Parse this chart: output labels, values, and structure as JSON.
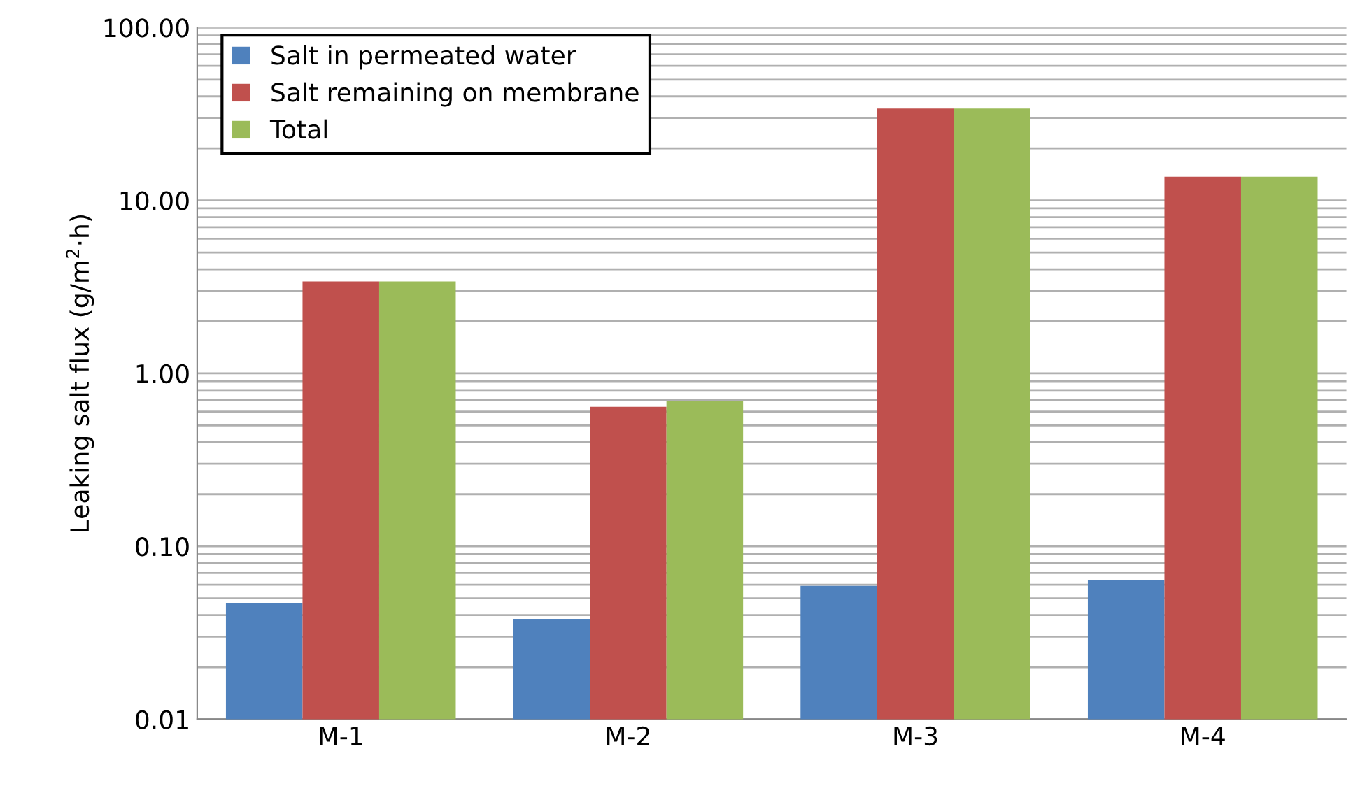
{
  "chart_data": {
    "type": "bar",
    "ylabel": "Leaking salt flux (g/m$^{2}$·h)",
    "categories": [
      "M-1",
      "M-2",
      "M-3",
      "M-4"
    ],
    "series": [
      {
        "name": "Salt in permeated water",
        "color": "#4f81bd",
        "values": [
          0.047,
          0.038,
          0.059,
          0.064
        ]
      },
      {
        "name": "Salt remaining on membrane",
        "color": "#c0504d",
        "values": [
          3.4,
          0.64,
          34,
          13.7
        ]
      },
      {
        "name": "Total",
        "color": "#9bbb59",
        "values": [
          3.4,
          0.69,
          34,
          13.7
        ]
      }
    ],
    "log": true,
    "ylim": [
      0.01,
      100
    ],
    "yticks": [
      {
        "value": 0.01,
        "label": "0.01"
      },
      {
        "value": 0.1,
        "label": "0.10"
      },
      {
        "value": 1,
        "label": "1.00"
      },
      {
        "value": 10,
        "label": "10.00"
      },
      {
        "value": 100,
        "label": "100.00"
      }
    ],
    "grid": "y",
    "legend": "top left"
  }
}
